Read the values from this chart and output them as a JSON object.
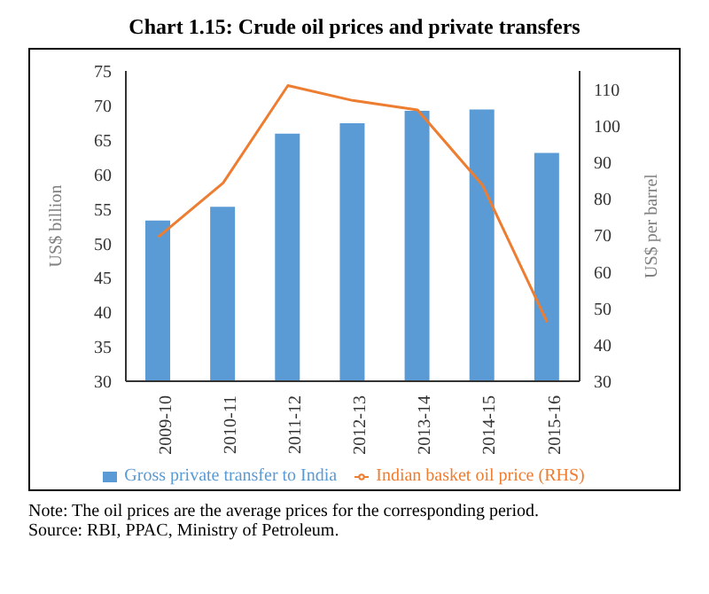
{
  "chart_data": {
    "type": "bar",
    "title": "Chart 1.15: Crude oil prices and private transfers",
    "categories": [
      "2009-10",
      "2010-11",
      "2011-12",
      "2012-13",
      "2013-14",
      "2014-15",
      "2015-16"
    ],
    "series": [
      {
        "name": "Gross private transfer to India",
        "color": "#5b9bd5",
        "values": [
          53.3,
          55.3,
          65.9,
          67.4,
          69.2,
          69.4,
          63.1
        ]
      },
      {
        "name": "Indian basket oil price (RHS)",
        "type": "line",
        "axis": "y2",
        "color": "#ed7d31",
        "values": [
          69.5,
          84.3,
          111,
          106.9,
          104.3,
          83.8,
          46.2
        ]
      }
    ],
    "ylabel": "US$ billion",
    "y2label": "US$ per barrel",
    "ylim": [
      30,
      75
    ],
    "yticks": [
      30,
      35,
      40,
      45,
      50,
      55,
      60,
      65,
      70,
      75
    ],
    "y2lim": [
      30,
      115
    ],
    "y2ticks": [
      30,
      40,
      50,
      60,
      70,
      80,
      90,
      100,
      110
    ],
    "grid": false,
    "legend": "bottom",
    "marker": "none",
    "annotations": [
      "Note: The oil prices are the average prices for the corresponding period.",
      "Source: RBI, PPAC, Ministry of Petroleum."
    ]
  }
}
